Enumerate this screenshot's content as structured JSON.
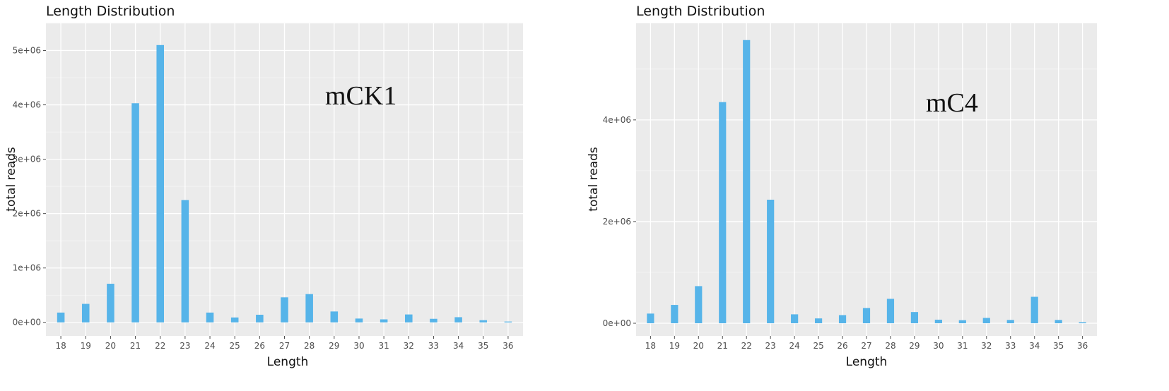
{
  "chart_data": [
    {
      "type": "bar",
      "title": "Length Distribution",
      "annotation": "mCK1",
      "xlabel": "Length",
      "ylabel": "total reads",
      "categories": [
        "18",
        "19",
        "20",
        "21",
        "22",
        "23",
        "24",
        "25",
        "26",
        "27",
        "28",
        "29",
        "30",
        "31",
        "32",
        "33",
        "34",
        "35",
        "36"
      ],
      "values": [
        180000,
        340000,
        710000,
        4030000,
        5100000,
        2250000,
        180000,
        90000,
        140000,
        460000,
        520000,
        200000,
        70000,
        55000,
        145000,
        65000,
        95000,
        40000,
        15000
      ],
      "ylim": [
        -250000,
        5500000
      ],
      "yticks": [
        0,
        1000000,
        2000000,
        3000000,
        4000000,
        5000000
      ],
      "ytick_labels": [
        "0e+00",
        "1e+06",
        "2e+06",
        "3e+06",
        "4e+06",
        "5e+06"
      ],
      "grid": true,
      "bar_color": "#56b4e9",
      "panel_color": "#ebebeb"
    },
    {
      "type": "bar",
      "title": "Length Distribution",
      "annotation": "mC4",
      "xlabel": "Length",
      "ylabel": "total reads",
      "categories": [
        "18",
        "19",
        "20",
        "21",
        "22",
        "23",
        "24",
        "25",
        "26",
        "27",
        "28",
        "29",
        "30",
        "31",
        "32",
        "33",
        "34",
        "35",
        "36"
      ],
      "values": [
        190000,
        360000,
        730000,
        4350000,
        5570000,
        2430000,
        175000,
        95000,
        160000,
        300000,
        480000,
        220000,
        70000,
        60000,
        105000,
        65000,
        520000,
        65000,
        20000
      ],
      "ylim": [
        -250000,
        5900000
      ],
      "yticks": [
        0,
        2000000,
        4000000
      ],
      "ytick_labels": [
        "0e+00",
        "2e+06",
        "4e+06"
      ],
      "grid": true,
      "bar_color": "#56b4e9",
      "panel_color": "#ebebeb"
    }
  ]
}
